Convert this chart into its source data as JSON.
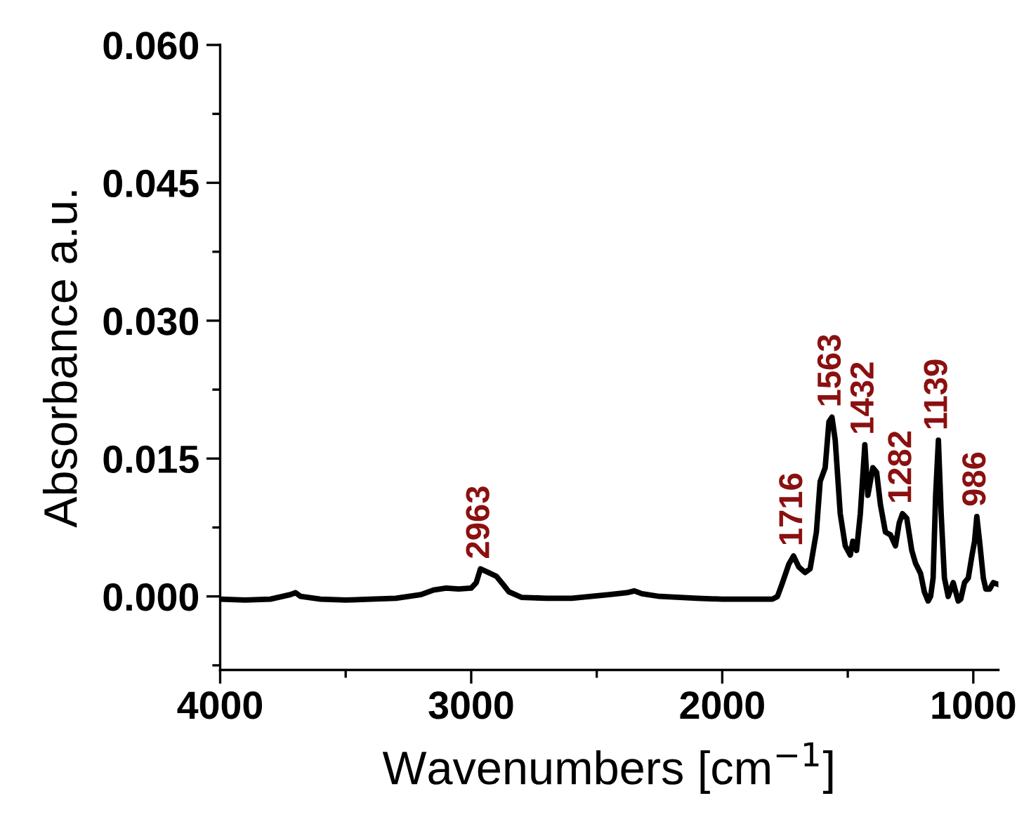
{
  "chart_data": {
    "type": "line",
    "xlabel": "Wavenumbers [cm$^{−1}$]",
    "ylabel": "Absorbance a.u.",
    "xlim": [
      4000,
      900
    ],
    "ylim": [
      -0.008,
      0.06
    ],
    "xticks": [
      4000,
      {
        "value": 3500,
        "label": null
      },
      3000,
      {
        "value": 2500,
        "label": null
      },
      2000,
      {
        "value": 1500,
        "label": null
      },
      1000
    ],
    "yticks": [
      {
        "value": -0.0075,
        "label": null
      },
      {
        "value": 0,
        "label": "0.000"
      },
      {
        "value": 0.0075,
        "label": null
      },
      {
        "value": 0.015,
        "label": "0.015"
      },
      {
        "value": 0.0225,
        "label": null
      },
      {
        "value": 0.03,
        "label": "0.030"
      },
      {
        "value": 0.0375,
        "label": null
      },
      {
        "value": 0.045,
        "label": "0.045"
      },
      {
        "value": 0.0525,
        "label": null
      },
      {
        "value": 0.06,
        "label": "0.060"
      }
    ],
    "grid": false,
    "legend": false,
    "marker": "none",
    "line_style": "solid",
    "series": [
      {
        "color": "#000000",
        "x": [
          4000,
          3900,
          3800,
          3720,
          3700,
          3680,
          3600,
          3500,
          3400,
          3300,
          3200,
          3150,
          3100,
          3050,
          3000,
          2980,
          2963,
          2940,
          2900,
          2870,
          2850,
          2800,
          2700,
          2600,
          2450,
          2380,
          2350,
          2320,
          2250,
          2100,
          2000,
          1900,
          1800,
          1780,
          1760,
          1735,
          1716,
          1695,
          1670,
          1650,
          1625,
          1610,
          1590,
          1575,
          1563,
          1550,
          1530,
          1510,
          1490,
          1480,
          1465,
          1450,
          1432,
          1420,
          1400,
          1385,
          1370,
          1350,
          1330,
          1310,
          1295,
          1282,
          1265,
          1245,
          1230,
          1210,
          1195,
          1180,
          1170,
          1160,
          1150,
          1139,
          1128,
          1115,
          1100,
          1080,
          1060,
          1050,
          1035,
          1020,
          1005,
          995,
          986,
          975,
          960,
          950,
          935,
          920,
          900
        ],
        "values": [
          -0.0003,
          -0.0004,
          -0.0003,
          0.0002,
          0.0004,
          0.0,
          -0.0003,
          -0.0004,
          -0.0003,
          -0.0002,
          0.0002,
          0.0007,
          0.0009,
          0.0008,
          0.0009,
          0.0015,
          0.003,
          0.0027,
          0.0022,
          0.0012,
          0.0005,
          -0.0001,
          -0.0002,
          -0.0002,
          0.0002,
          0.0004,
          0.0006,
          0.0003,
          0.0,
          -0.0002,
          -0.0003,
          -0.0003,
          -0.0003,
          0.0,
          0.0015,
          0.0035,
          0.0044,
          0.0032,
          0.0026,
          0.003,
          0.007,
          0.0125,
          0.014,
          0.019,
          0.0195,
          0.017,
          0.009,
          0.0055,
          0.0045,
          0.006,
          0.005,
          0.009,
          0.0165,
          0.011,
          0.014,
          0.0135,
          0.01,
          0.007,
          0.0067,
          0.0055,
          0.008,
          0.009,
          0.0085,
          0.005,
          0.0036,
          0.0025,
          0.0005,
          -0.0005,
          0.0,
          0.002,
          0.011,
          0.017,
          0.009,
          0.002,
          0.0,
          0.0015,
          -0.0005,
          -0.0003,
          0.0015,
          0.002,
          0.0045,
          0.006,
          0.0087,
          0.006,
          0.002,
          0.0008,
          0.0008,
          0.0015,
          0.0013
        ]
      }
    ],
    "annotations": [
      {
        "text": "2963",
        "x": 2963,
        "y": 0.003
      },
      {
        "text": "1716",
        "x": 1716,
        "y": 0.0044
      },
      {
        "text": "1563",
        "x": 1563,
        "y": 0.0195
      },
      {
        "text": "1432",
        "x": 1432,
        "y": 0.0165
      },
      {
        "text": "1282",
        "x": 1282,
        "y": 0.009
      },
      {
        "text": "1139",
        "x": 1139,
        "y": 0.017
      },
      {
        "text": "986",
        "x": 986,
        "y": 0.0087
      }
    ]
  }
}
